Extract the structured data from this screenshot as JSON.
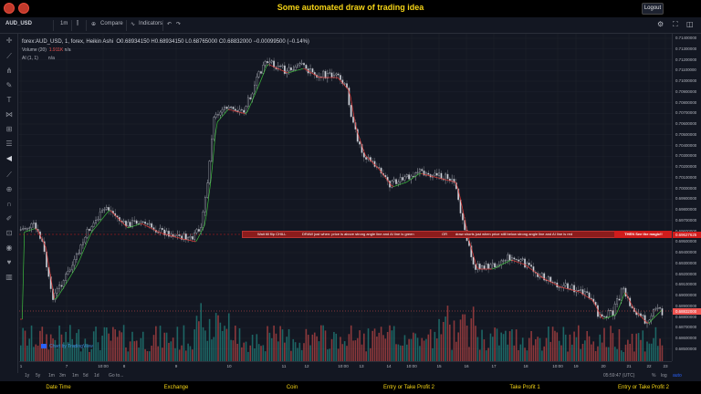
{
  "app": {
    "title": "Some automated draw of trading idea",
    "logout_label": "Logout"
  },
  "toolbar": {
    "symbol": "AUD_USD",
    "interval": "1m",
    "compare_label": "Compare",
    "indicators_label": "Indicators"
  },
  "legend": {
    "main": "forex:AUD_USD, 1, forex, Heikin Ashi",
    "ohlc": "O0.68934150  H0.68934150  L0.68765000  C0.68832000  −0.00099500 (−0.14%)",
    "volume_label": "Volume (20)",
    "volume_value": "1.911K",
    "ai_label": "AI (1, 1)",
    "na1": "n/a",
    "na2": "n/a"
  },
  "annotation": {
    "part1": "Wait till flip CHILL",
    "part2": "DRAW just when:  price is above strong angle line and AI line is green",
    "part3": "OR",
    "part4": "draw shorts just when price still below strong angle line and AI line is red",
    "magic": "THEN See the magic!!"
  },
  "credit": "Chart by TradingView",
  "price_axis": {
    "labels": [
      "0.71400000",
      "0.71300000",
      "0.71200000",
      "0.71100000",
      "0.71000000",
      "0.70900000",
      "0.70800000",
      "0.70700000",
      "0.70600000",
      "0.70500000",
      "0.70400000",
      "0.70300000",
      "0.70200000",
      "0.70100000",
      "0.70000000",
      "0.69900000",
      "0.69800000",
      "0.69700000",
      "0.69600000",
      "0.69500000",
      "0.69400000",
      "0.69300000",
      "0.69200000",
      "0.69100000",
      "0.69000000",
      "0.68900000",
      "0.68800000",
      "0.68700000",
      "0.68600000",
      "0.68500000"
    ],
    "current_price": "0.68832000",
    "current_color": "#ef5350",
    "line_price": "0.69627625",
    "line_color": "#d01c1c"
  },
  "time_axis": {
    "labels": [
      "1",
      "7",
      "10:00",
      "8",
      "9",
      "10",
      "11",
      "12",
      "10:00",
      "13",
      "14",
      "10:00",
      "15",
      "16",
      "17",
      "18",
      "10:00",
      "19",
      "20",
      "21",
      "22",
      "23"
    ]
  },
  "timeframes": [
    "1y",
    "5y",
    "1m",
    "3m",
    "1m",
    "5d",
    "1d",
    "Go to...",
    "05:59:47 (UTC)",
    "%",
    "log",
    "auto"
  ],
  "footer": [
    "Date Time",
    "Exchange",
    "Coin",
    "Entry or Take Profit 2",
    "Take Profit 1",
    "Entry or Take Profit 2"
  ],
  "colors": {
    "bull": "#26a69a",
    "bear": "#ef5350",
    "accent": "#f5d416",
    "ai_green": "#3fbf3f",
    "ai_red": "#e53935"
  }
}
